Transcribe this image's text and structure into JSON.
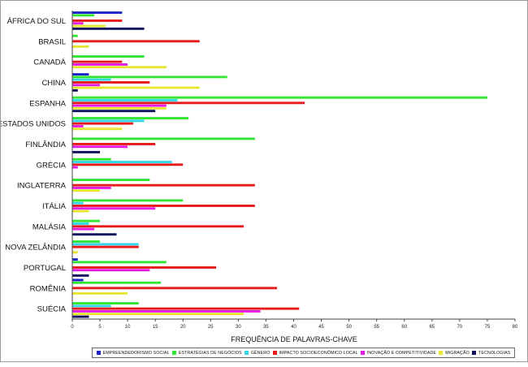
{
  "chart_data": {
    "type": "bar",
    "orientation": "horizontal",
    "title": "",
    "xlabel": "FREQUÊNCIA DE PALAVRAS-CHAVE",
    "ylabel": "",
    "xlim": [
      0,
      80
    ],
    "xticks": [
      "0",
      "5",
      "10",
      "15",
      "20",
      "25",
      "30",
      "35",
      "40",
      "45",
      "50",
      "55",
      "60",
      "65",
      "70",
      "75",
      "80"
    ],
    "grid": false,
    "legend_position": "bottom",
    "categories": [
      "ÁFRICA DO SUL",
      "BRASIL",
      "CANADÁ",
      "CHINA",
      "ESPANHA",
      "ESTADOS UNIDOS",
      "FINLÂNDIA",
      "GRÉCIA",
      "INGLATERRA",
      "ITÁLIA",
      "MALÁSIA",
      "NOVA ZELÂNDIA",
      "PORTUGAL",
      "ROMÊNIA",
      "SUÉCIA"
    ],
    "series": [
      {
        "name": "EMPREENDEDORISMO SOCIAL",
        "color": "#1a22c8",
        "values": [
          9,
          0,
          0,
          3,
          0,
          0,
          0,
          0,
          0,
          0,
          0,
          0,
          1,
          2,
          0
        ]
      },
      {
        "name": "ESTRATÉGIAS DE NEGÓCIOS",
        "color": "#33e633",
        "values": [
          4,
          1,
          13,
          28,
          75,
          21,
          33,
          7,
          14,
          20,
          5,
          5,
          17,
          16,
          12
        ]
      },
      {
        "name": "GÊNERO",
        "color": "#33d6e6",
        "values": [
          0,
          0,
          0,
          7,
          19,
          13,
          0,
          18,
          0,
          2,
          3,
          12,
          0,
          0,
          7
        ]
      },
      {
        "name": "IMPACTO SOCIOECONÔMICO LOCAL",
        "color": "#e61a1a",
        "values": [
          9,
          23,
          9,
          14,
          42,
          11,
          15,
          20,
          33,
          33,
          31,
          12,
          26,
          37,
          41
        ]
      },
      {
        "name": "INOVAÇÃO E COMPETITIVIDADE",
        "color": "#e61ae6",
        "values": [
          2,
          0,
          10,
          5,
          17,
          2,
          10,
          1,
          7,
          15,
          4,
          0,
          14,
          0,
          34
        ]
      },
      {
        "name": "MIGRAÇÃO",
        "color": "#e6e633",
        "values": [
          6,
          3,
          17,
          23,
          17,
          9,
          0,
          0,
          5,
          3,
          0,
          1,
          0,
          10,
          31
        ]
      },
      {
        "name": "TECNOLOGIAS",
        "color": "#11115e",
        "values": [
          13,
          0,
          0,
          1,
          15,
          0,
          5,
          0,
          0,
          0,
          8,
          0,
          3,
          0,
          3
        ]
      }
    ]
  }
}
